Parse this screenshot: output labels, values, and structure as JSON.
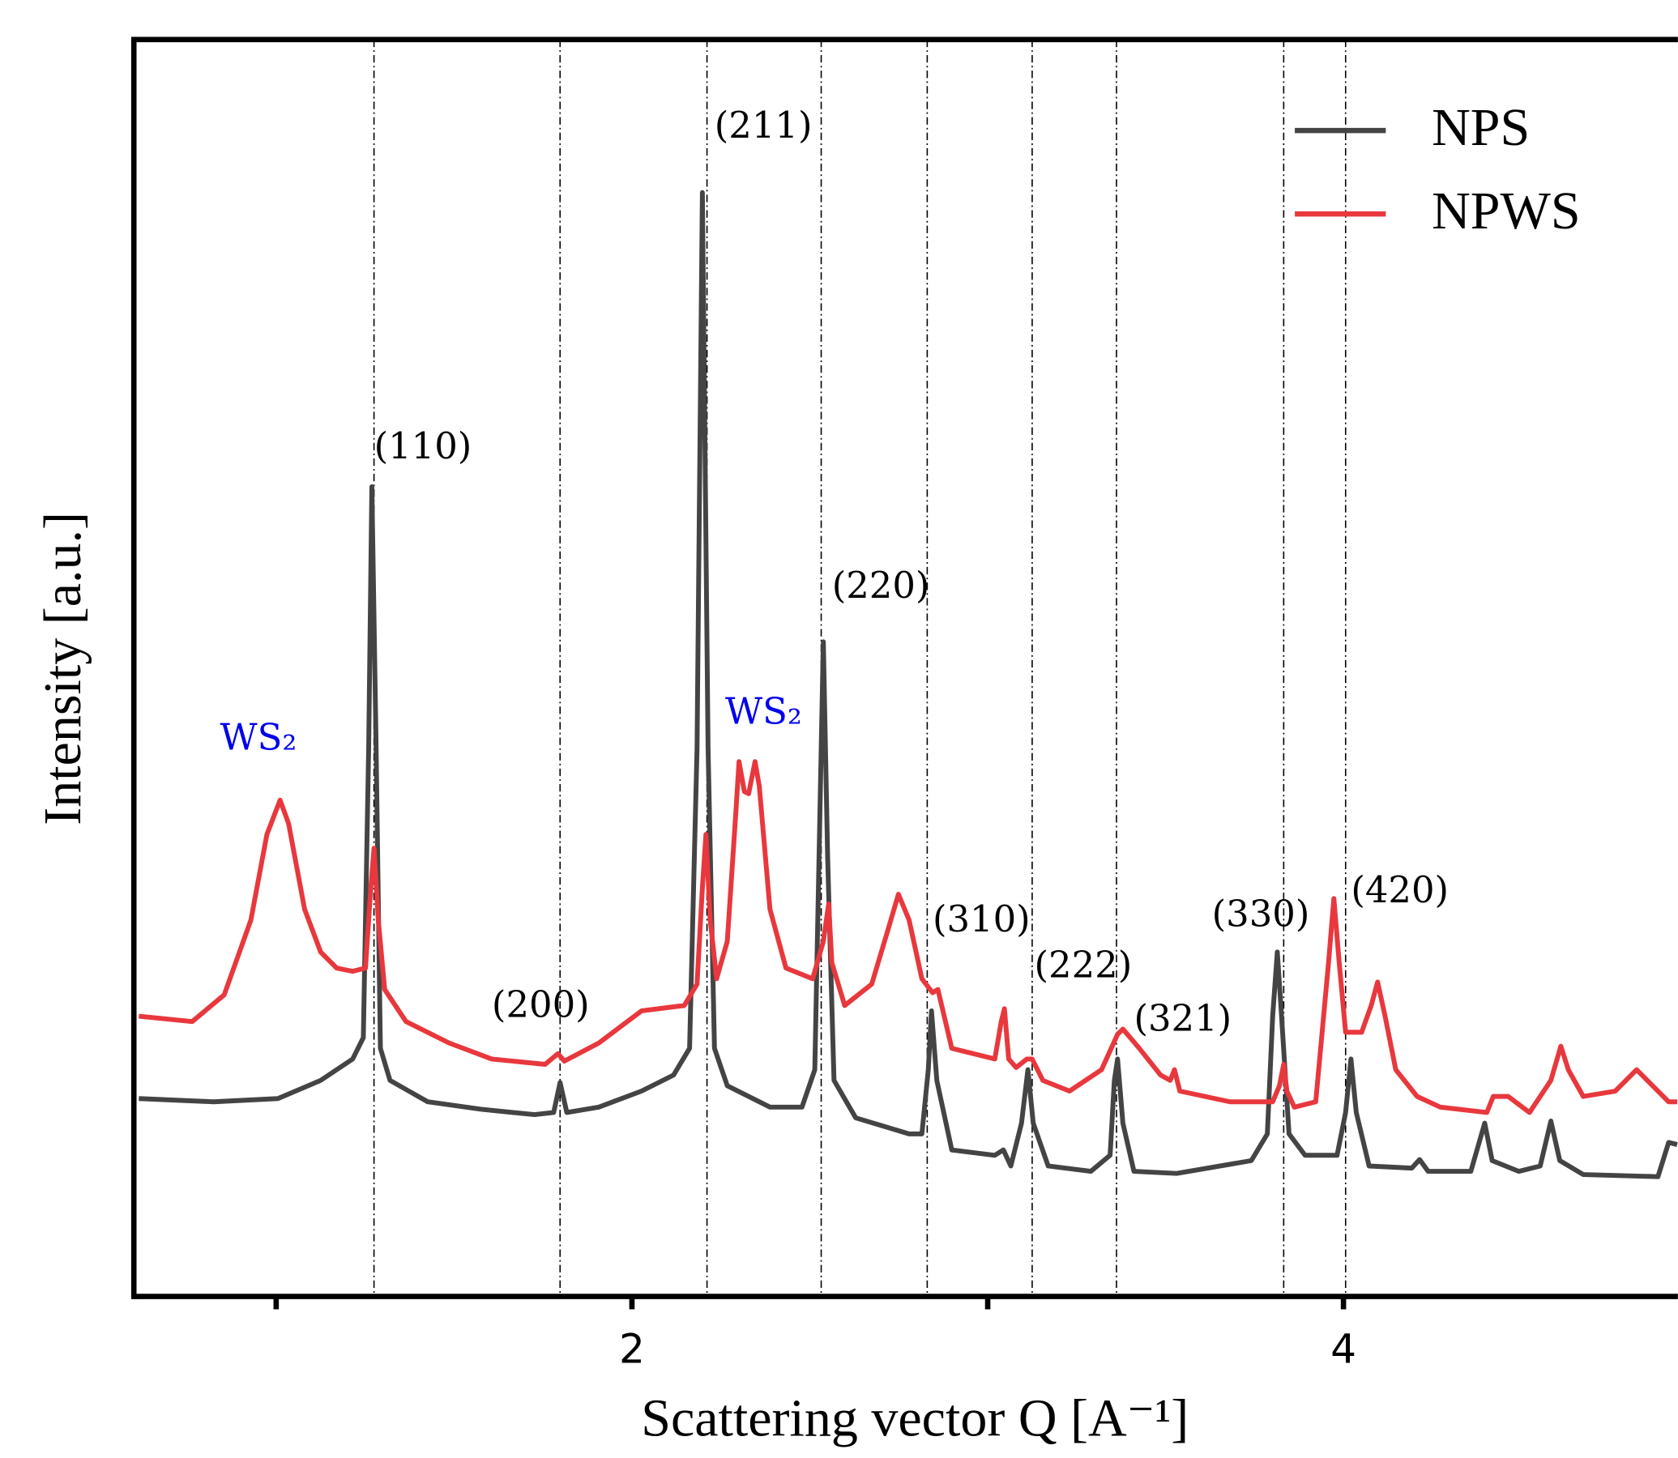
{
  "chart_data": {
    "type": "line",
    "x_label": "Scattering vector Q [A⁻¹]",
    "y_label": "Intensity [a.u.]",
    "xlim": [
      0.6,
      4.94
    ],
    "ylim": [
      0,
      1175
    ],
    "xticks": [
      2,
      4
    ],
    "xminorticks": [
      1,
      3
    ],
    "legend": "upper right",
    "reference_lines": [
      1.275,
      1.798,
      2.211,
      2.532,
      2.83,
      3.125,
      3.362,
      3.832,
      4.006
    ],
    "series": [
      {
        "name": "NPS",
        "color": "#444444",
        "x": [
          0.614,
          0.824,
          1.005,
          1.125,
          1.215,
          1.245,
          1.26,
          1.269,
          1.281,
          1.293,
          1.32,
          1.426,
          1.576,
          1.726,
          1.78,
          1.798,
          1.817,
          1.907,
          2.027,
          2.117,
          2.162,
          2.183,
          2.198,
          2.214,
          2.232,
          2.268,
          2.388,
          2.478,
          2.514,
          2.526,
          2.538,
          2.55,
          2.568,
          2.629,
          2.779,
          2.815,
          2.833,
          2.842,
          2.857,
          2.899,
          3.02,
          3.044,
          3.065,
          3.095,
          3.113,
          3.128,
          3.17,
          3.29,
          3.344,
          3.356,
          3.365,
          3.38,
          3.411,
          3.531,
          3.741,
          3.786,
          3.801,
          3.814,
          3.826,
          3.847,
          3.892,
          3.982,
          4.006,
          4.021,
          4.036,
          4.072,
          4.192,
          4.214,
          4.238,
          4.358,
          4.397,
          4.418,
          4.493,
          4.553,
          4.583,
          4.608,
          4.674,
          4.884,
          4.914,
          4.938
        ],
        "values": [
          185,
          182,
          185,
          202,
          222,
          242,
          512,
          757,
          512,
          232,
          202,
          182,
          175,
          170,
          172,
          200,
          172,
          177,
          192,
          207,
          232,
          512,
          1032,
          512,
          232,
          197,
          177,
          177,
          212,
          412,
          612,
          412,
          202,
          167,
          152,
          152,
          212,
          267,
          202,
          137,
          132,
          137,
          122,
          162,
          212,
          162,
          122,
          117,
          132,
          202,
          222,
          162,
          117,
          115,
          127,
          152,
          262,
          322,
          262,
          152,
          132,
          132,
          172,
          222,
          172,
          122,
          120,
          128,
          117,
          117,
          162,
          127,
          117,
          122,
          164,
          127,
          114,
          112,
          144,
          142
        ]
      },
      {
        "name": "NPWS",
        "color": "#e8383d",
        "x": [
          0.614,
          0.764,
          0.854,
          0.929,
          0.974,
          1.011,
          1.035,
          1.08,
          1.125,
          1.17,
          1.215,
          1.251,
          1.266,
          1.275,
          1.287,
          1.305,
          1.365,
          1.486,
          1.606,
          1.756,
          1.792,
          1.81,
          1.907,
          2.027,
          2.147,
          2.183,
          2.198,
          2.208,
          2.22,
          2.238,
          2.268,
          2.292,
          2.301,
          2.316,
          2.328,
          2.346,
          2.358,
          2.388,
          2.433,
          2.508,
          2.538,
          2.553,
          2.562,
          2.598,
          2.674,
          2.719,
          2.749,
          2.779,
          2.815,
          2.845,
          2.86,
          2.899,
          3.02,
          3.038,
          3.047,
          3.059,
          3.08,
          3.11,
          3.125,
          3.155,
          3.23,
          3.32,
          3.365,
          3.38,
          3.426,
          3.486,
          3.513,
          3.525,
          3.54,
          3.681,
          3.801,
          3.82,
          3.832,
          3.841,
          3.862,
          3.922,
          3.958,
          3.973,
          3.988,
          4.006,
          4.027,
          4.051,
          4.078,
          4.096,
          4.117,
          4.147,
          4.207,
          4.272,
          4.403,
          4.421,
          4.463,
          4.523,
          4.583,
          4.611,
          4.632,
          4.674,
          4.764,
          4.824,
          4.869,
          4.914,
          4.938
        ],
        "values": [
          262,
          257,
          282,
          352,
          432,
          464,
          442,
          362,
          322,
          307,
          304,
          307,
          382,
          419,
          352,
          287,
          257,
          237,
          222,
          217,
          227,
          220,
          237,
          267,
          272,
          292,
          382,
          432,
          352,
          297,
          332,
          452,
          500,
          472,
          470,
          500,
          477,
          362,
          307,
          297,
          332,
          367,
          312,
          272,
          292,
          342,
          376,
          352,
          297,
          284,
          287,
          232,
          222,
          257,
          269,
          222,
          214,
          222,
          222,
          202,
          192,
          212,
          245,
          250,
          232,
          207,
          202,
          212,
          192,
          182,
          182,
          197,
          217,
          192,
          177,
          182,
          312,
          372,
          312,
          247,
          247,
          247,
          272,
          294,
          262,
          212,
          187,
          177,
          172,
          187,
          187,
          172,
          202,
          234,
          212,
          187,
          192,
          212,
          197,
          182,
          182
        ]
      }
    ],
    "annotations": [
      {
        "text": "WS₂",
        "x": 0.842,
        "y": 520,
        "color": "#0000ee"
      },
      {
        "text": "(110)",
        "x": 1.275,
        "y": 792
      },
      {
        "text": "(200)",
        "x": 1.606,
        "y": 270
      },
      {
        "text": "(211)",
        "x": 2.232,
        "y": 1092
      },
      {
        "text": "WS₂",
        "x": 2.262,
        "y": 544,
        "color": "#0000ee"
      },
      {
        "text": "(220)",
        "x": 2.562,
        "y": 662
      },
      {
        "text": "(310)",
        "x": 2.845,
        "y": 350
      },
      {
        "text": "(222)",
        "x": 3.131,
        "y": 307
      },
      {
        "text": "(321)",
        "x": 3.411,
        "y": 257
      },
      {
        "text": "(330)",
        "x": 3.63,
        "y": 355
      },
      {
        "text": "(420)",
        "x": 4.021,
        "y": 377
      }
    ]
  }
}
